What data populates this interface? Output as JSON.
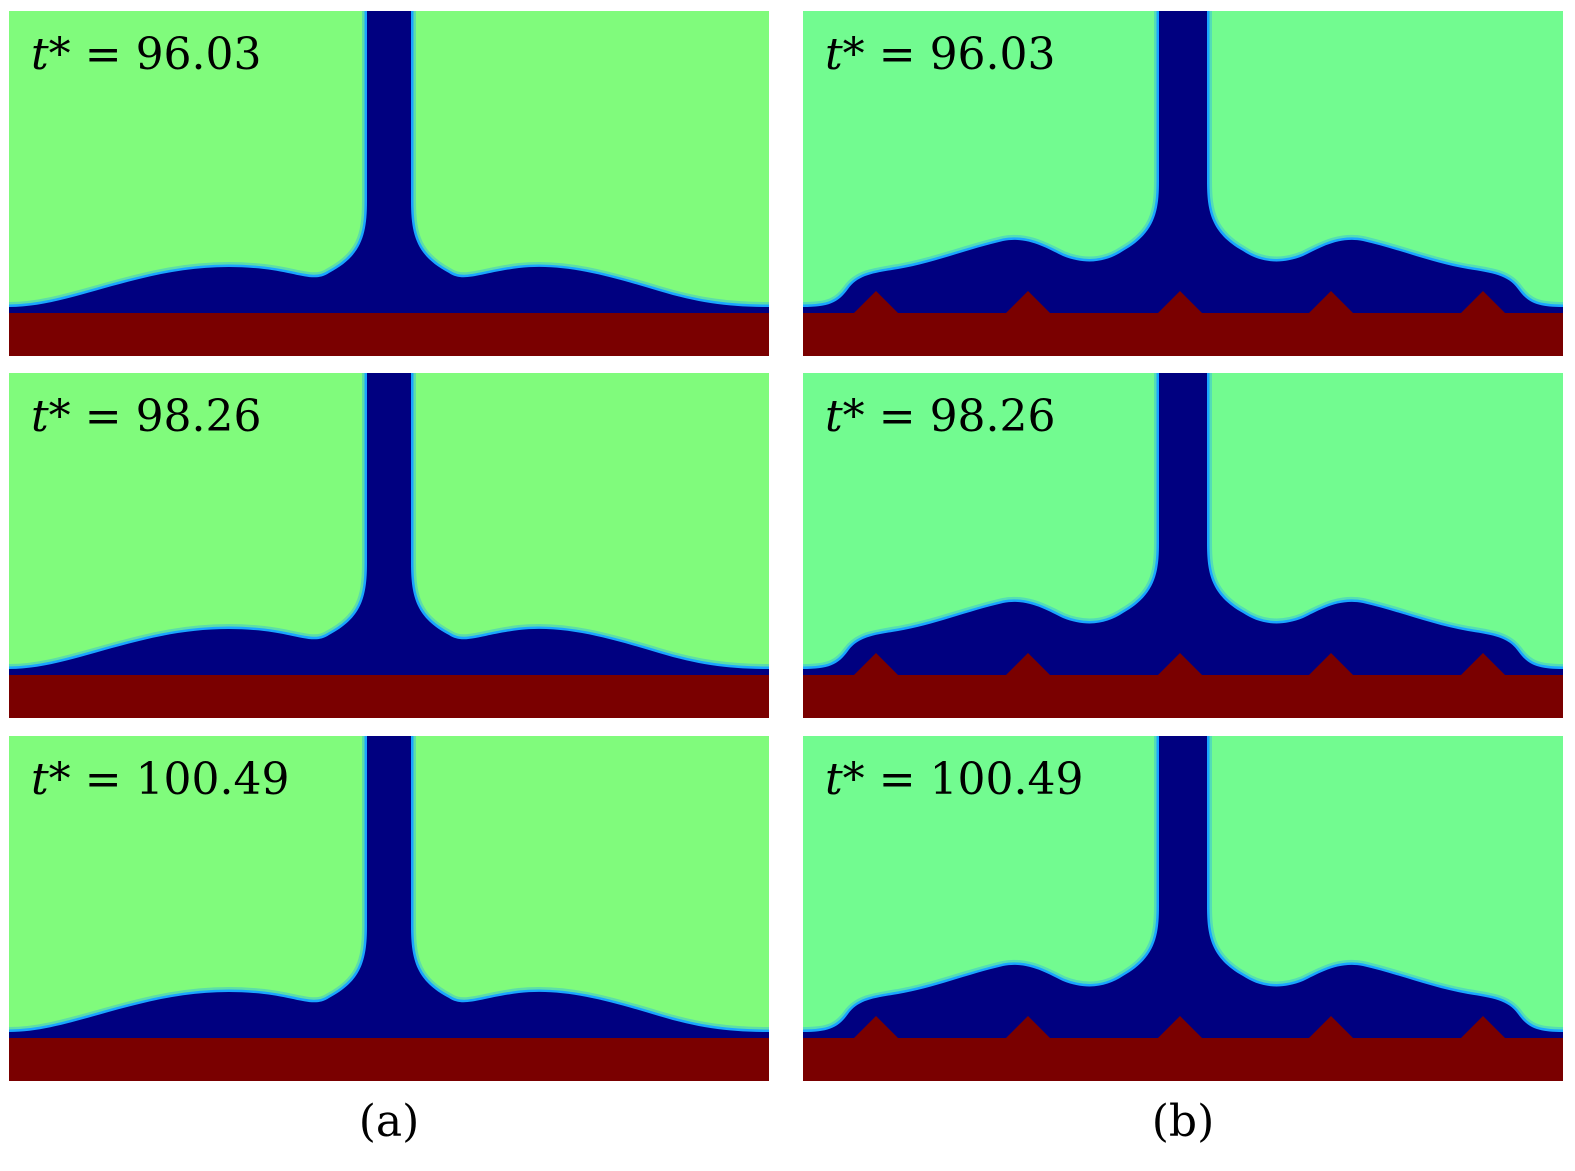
{
  "columns": [
    {
      "caption": "(a)",
      "substrate": "flat",
      "fluid_color": "#80fb7c",
      "panels": [
        {
          "t_symbol": "t*",
          "t_value": "96.03"
        },
        {
          "t_symbol": "t*",
          "t_value": "98.26"
        },
        {
          "t_symbol": "t*",
          "t_value": "100.49"
        }
      ]
    },
    {
      "caption": "(b)",
      "substrate": "triangular-ridges",
      "fluid_color": "#72fb90",
      "panels": [
        {
          "t_symbol": "t*",
          "t_value": "96.03"
        },
        {
          "t_symbol": "t*",
          "t_value": "98.26"
        },
        {
          "t_symbol": "t*",
          "t_value": "100.49"
        }
      ]
    }
  ],
  "colors": {
    "jet": "#000080",
    "interface": "#1aa6ff",
    "wall": "#7a0000"
  }
}
